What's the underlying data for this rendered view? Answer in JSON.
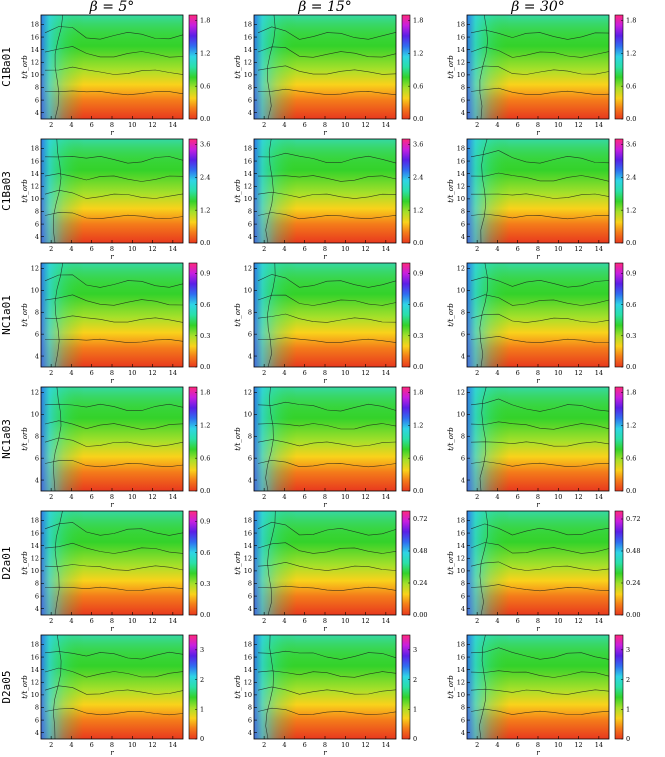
{
  "figure": {
    "column_titles": [
      "β = 5°",
      "β = 15°",
      "β = 30°"
    ],
    "row_labels": [
      "C1Ba01",
      "C1Ba03",
      "NC1a01",
      "NC1a03",
      "D2a01",
      "D2a05"
    ],
    "xlabel": "r",
    "ylabel": "t/t_orb"
  },
  "chart_data": {
    "type": "heatmap",
    "colormap": [
      "#e8391e",
      "#f47b1a",
      "#f9d21b",
      "#a5e02a",
      "#34d22a",
      "#2ae0a8",
      "#2fd5e6",
      "#2f6ef0",
      "#5a1fe6",
      "#c81fe0",
      "#ff2a7c"
    ],
    "x_ticks": [
      2,
      4,
      6,
      8,
      10,
      12,
      14
    ],
    "x_range": [
      1,
      15
    ],
    "panels": [
      {
        "row": "C1Ba01",
        "beta": "5°",
        "y_ticks": [
          4,
          6,
          8,
          10,
          12,
          14,
          16,
          18
        ],
        "y_range": [
          3,
          19.5
        ],
        "colorbar_ticks": [
          "0.0",
          "0.6",
          "1.2",
          "1.8"
        ],
        "vmax": 1.9
      },
      {
        "row": "C1Ba01",
        "beta": "15°",
        "y_ticks": [
          4,
          6,
          8,
          10,
          12,
          14,
          16,
          18
        ],
        "y_range": [
          3,
          19.5
        ],
        "colorbar_ticks": [
          "0.0",
          "0.6",
          "1.2",
          "1.8"
        ],
        "vmax": 1.9
      },
      {
        "row": "C1Ba01",
        "beta": "30°",
        "y_ticks": [
          4,
          6,
          8,
          10,
          12,
          14,
          16,
          18
        ],
        "y_range": [
          3,
          19.5
        ],
        "colorbar_ticks": [
          "0.0",
          "0.6",
          "1.2",
          "1.8"
        ],
        "vmax": 1.9
      },
      {
        "row": "C1Ba03",
        "beta": "5°",
        "y_ticks": [
          4,
          6,
          8,
          10,
          12,
          14,
          16,
          18
        ],
        "y_range": [
          3,
          19.5
        ],
        "colorbar_ticks": [
          "0.0",
          "1.2",
          "2.4",
          "3.6"
        ],
        "vmax": 3.8
      },
      {
        "row": "C1Ba03",
        "beta": "15°",
        "y_ticks": [
          4,
          6,
          8,
          10,
          12,
          14,
          16,
          18
        ],
        "y_range": [
          3,
          19.5
        ],
        "colorbar_ticks": [
          "0.0",
          "1.2",
          "2.4",
          "3.6"
        ],
        "vmax": 3.8
      },
      {
        "row": "C1Ba03",
        "beta": "30°",
        "y_ticks": [
          4,
          6,
          8,
          10,
          12,
          14,
          16,
          18
        ],
        "y_range": [
          3,
          19.5
        ],
        "colorbar_ticks": [
          "0.0",
          "1.2",
          "2.4",
          "3.6"
        ],
        "vmax": 3.8
      },
      {
        "row": "NC1a01",
        "beta": "5°",
        "y_ticks": [
          4,
          6,
          8,
          10,
          12
        ],
        "y_range": [
          3,
          12.5
        ],
        "colorbar_ticks": [
          "0.0",
          "0.3",
          "0.6",
          "0.9"
        ],
        "vmax": 1.0
      },
      {
        "row": "NC1a01",
        "beta": "15°",
        "y_ticks": [
          4,
          6,
          8,
          10,
          12
        ],
        "y_range": [
          3,
          12.5
        ],
        "colorbar_ticks": [
          "0.0",
          "0.3",
          "0.6",
          "0.9"
        ],
        "vmax": 1.0
      },
      {
        "row": "NC1a01",
        "beta": "30°",
        "y_ticks": [
          4,
          6,
          8,
          10,
          12
        ],
        "y_range": [
          3,
          12.5
        ],
        "colorbar_ticks": [
          "0.0",
          "0.3",
          "0.6",
          "0.9"
        ],
        "vmax": 1.0
      },
      {
        "row": "NC1a03",
        "beta": "5°",
        "y_ticks": [
          4,
          6,
          8,
          10,
          12
        ],
        "y_range": [
          3,
          12.5
        ],
        "colorbar_ticks": [
          "0.0",
          "0.6",
          "1.2",
          "1.8"
        ],
        "vmax": 1.9
      },
      {
        "row": "NC1a03",
        "beta": "15°",
        "y_ticks": [
          4,
          6,
          8,
          10,
          12
        ],
        "y_range": [
          3,
          12.5
        ],
        "colorbar_ticks": [
          "0.0",
          "0.6",
          "1.2",
          "1.8"
        ],
        "vmax": 1.9
      },
      {
        "row": "NC1a03",
        "beta": "30°",
        "y_ticks": [
          4,
          6,
          8,
          10,
          12
        ],
        "y_range": [
          3,
          12.5
        ],
        "colorbar_ticks": [
          "0.0",
          "0.6",
          "1.2",
          "1.8"
        ],
        "vmax": 1.9
      },
      {
        "row": "D2a01",
        "beta": "5°",
        "y_ticks": [
          4,
          6,
          8,
          10,
          12,
          14,
          16,
          18
        ],
        "y_range": [
          3,
          19.5
        ],
        "colorbar_ticks": [
          "0.0",
          "0.3",
          "0.6",
          "0.9"
        ],
        "vmax": 1.0
      },
      {
        "row": "D2a01",
        "beta": "15°",
        "y_ticks": [
          4,
          6,
          8,
          10,
          12,
          14,
          16,
          18
        ],
        "y_range": [
          3,
          19.5
        ],
        "colorbar_ticks": [
          "0.00",
          "0.24",
          "0.48",
          "0.72"
        ],
        "vmax": 0.78
      },
      {
        "row": "D2a01",
        "beta": "30°",
        "y_ticks": [
          4,
          6,
          8,
          10,
          12,
          14,
          16,
          18
        ],
        "y_range": [
          3,
          19.5
        ],
        "colorbar_ticks": [
          "0.00",
          "0.24",
          "0.48",
          "0.72"
        ],
        "vmax": 0.78
      },
      {
        "row": "D2a05",
        "beta": "5°",
        "y_ticks": [
          4,
          6,
          8,
          10,
          12,
          14,
          16,
          18
        ],
        "y_range": [
          3,
          19.5
        ],
        "colorbar_ticks": [
          "0",
          "1",
          "2",
          "3"
        ],
        "vmax": 3.5
      },
      {
        "row": "D2a05",
        "beta": "15°",
        "y_ticks": [
          4,
          6,
          8,
          10,
          12,
          14,
          16,
          18
        ],
        "y_range": [
          3,
          19.5
        ],
        "colorbar_ticks": [
          "0",
          "1",
          "2",
          "3"
        ],
        "vmax": 3.5
      },
      {
        "row": "D2a05",
        "beta": "30°",
        "y_ticks": [
          4,
          6,
          8,
          10,
          12,
          14,
          16,
          18
        ],
        "y_range": [
          3,
          19.5
        ],
        "colorbar_ticks": [
          "0",
          "1",
          "2",
          "3"
        ],
        "vmax": 3.5
      }
    ]
  }
}
